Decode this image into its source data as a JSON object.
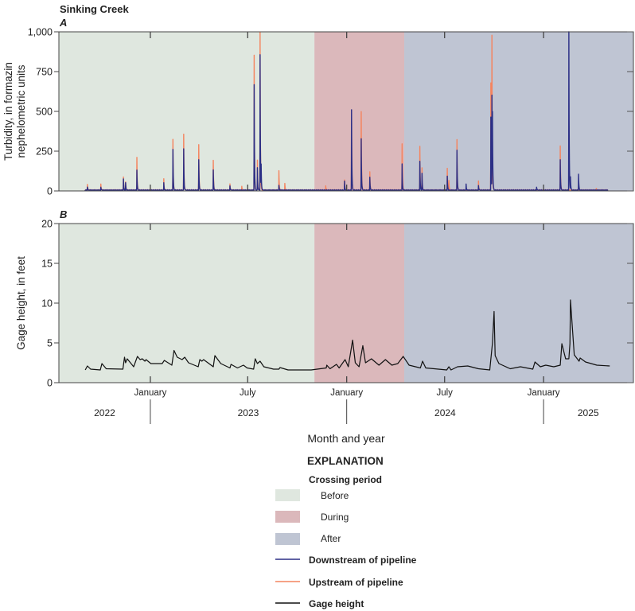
{
  "figure_title": "Sinking Creek",
  "x_axis_title": "Month and year",
  "x_axis": {
    "xlim": [
      "2022-07-15",
      "2025-06-17"
    ],
    "month_ticks": [
      {
        "date": "2023-01-01",
        "label": "January"
      },
      {
        "date": "2023-07-01",
        "label": "July"
      },
      {
        "date": "2024-01-01",
        "label": "January"
      },
      {
        "date": "2024-07-01",
        "label": "July"
      },
      {
        "date": "2025-01-01",
        "label": "January"
      }
    ],
    "years": [
      {
        "label": "2022",
        "center": "2022-10-08"
      },
      {
        "label": "2023",
        "center": "2023-07-02"
      },
      {
        "label": "2024",
        "center": "2024-07-02"
      },
      {
        "label": "2025",
        "center": "2025-03-25"
      }
    ],
    "year_boundaries": [
      "2023-01-01",
      "2024-01-01",
      "2025-01-01"
    ]
  },
  "periods": [
    {
      "name": "Before",
      "start": "2022-07-15",
      "end": "2023-11-02",
      "color": "#dfe7df"
    },
    {
      "name": "During",
      "start": "2023-11-02",
      "end": "2024-04-17",
      "color": "#dbb8bb"
    },
    {
      "name": "After",
      "start": "2024-04-17",
      "end": "2025-06-17",
      "color": "#bfc5d3"
    }
  ],
  "chart_data": [
    {
      "panel": "A",
      "type": "line",
      "ylabel": [
        "Turbidity, in formazin",
        "nephelometric units"
      ],
      "ylim": [
        0,
        1000
      ],
      "yticks": [
        0,
        250,
        500,
        750,
        1000
      ],
      "ytick_labels": [
        "0",
        "250",
        "500",
        "750",
        "1,000"
      ],
      "grid": false,
      "series": [
        {
          "name": "Upstream of pipeline",
          "color": "#f4845f",
          "start": "2022-09-01",
          "end": "2025-05-01",
          "baseline": 6,
          "peaks": [
            [
              "2022-09-06",
              42
            ],
            [
              "2022-10-01",
              45
            ],
            [
              "2022-11-12",
              87
            ],
            [
              "2022-11-16",
              55
            ],
            [
              "2022-12-07",
              213
            ],
            [
              "2023-01-26",
              75
            ],
            [
              "2023-02-12",
              325
            ],
            [
              "2023-03-04",
              355
            ],
            [
              "2023-04-01",
              292
            ],
            [
              "2023-04-28",
              190
            ],
            [
              "2023-05-29",
              45
            ],
            [
              "2023-06-20",
              30
            ],
            [
              "2023-07-13",
              855
            ],
            [
              "2023-07-19",
              192
            ],
            [
              "2023-07-24",
              1000
            ],
            [
              "2023-08-28",
              125
            ],
            [
              "2023-09-08",
              45
            ],
            [
              "2023-11-23",
              34
            ],
            [
              "2023-12-28",
              67
            ],
            [
              "2024-01-10",
              400
            ],
            [
              "2024-01-28",
              500
            ],
            [
              "2024-02-13",
              121
            ],
            [
              "2024-04-13",
              294
            ],
            [
              "2024-05-16",
              279
            ],
            [
              "2024-05-20",
              143
            ],
            [
              "2024-07-06",
              143
            ],
            [
              "2024-07-09",
              67
            ],
            [
              "2024-07-24",
              325
            ],
            [
              "2024-09-02",
              64
            ],
            [
              "2024-09-25",
              681
            ],
            [
              "2024-09-27",
              953
            ],
            [
              "2025-02-01",
              285
            ],
            [
              "2025-04-09",
              17
            ]
          ]
        },
        {
          "name": "Downstream of pipeline",
          "color": "#2b2f86",
          "start": "2022-09-01",
          "end": "2025-05-01",
          "baseline": 5,
          "peaks": [
            [
              "2022-09-06",
              25
            ],
            [
              "2022-10-01",
              25
            ],
            [
              "2022-11-12",
              75
            ],
            [
              "2022-11-16",
              50
            ],
            [
              "2022-12-07",
              133
            ],
            [
              "2023-01-26",
              50
            ],
            [
              "2023-02-12",
              262
            ],
            [
              "2023-03-04",
              263
            ],
            [
              "2023-04-01",
              197
            ],
            [
              "2023-04-28",
              130
            ],
            [
              "2023-05-29",
              33
            ],
            [
              "2023-07-13",
              670
            ],
            [
              "2023-07-19",
              145
            ],
            [
              "2023-07-24",
              858
            ],
            [
              "2023-07-26",
              137
            ],
            [
              "2023-08-28",
              33
            ],
            [
              "2023-12-28",
              60
            ],
            [
              "2024-01-10",
              512
            ],
            [
              "2024-01-28",
              329
            ],
            [
              "2024-02-13",
              87
            ],
            [
              "2024-04-13",
              168
            ],
            [
              "2024-05-16",
              185
            ],
            [
              "2024-05-20",
              109
            ],
            [
              "2024-07-06",
              94
            ],
            [
              "2024-07-24",
              258
            ],
            [
              "2024-08-10",
              42
            ],
            [
              "2024-09-02",
              35
            ],
            [
              "2024-09-25",
              466
            ],
            [
              "2024-09-27",
              584
            ],
            [
              "2024-09-28",
              388
            ],
            [
              "2024-12-19",
              25
            ],
            [
              "2025-02-01",
              198
            ],
            [
              "2025-02-17",
              1000
            ],
            [
              "2025-02-20",
              84
            ],
            [
              "2025-03-07",
              106
            ]
          ]
        }
      ]
    },
    {
      "panel": "B",
      "type": "line",
      "ylabel": "Gage height, in feet",
      "ylim": [
        0,
        20
      ],
      "yticks": [
        0,
        5,
        10,
        15,
        20
      ],
      "ytick_labels": [
        "0",
        "5",
        "10",
        "15",
        "20"
      ],
      "grid": false,
      "series": [
        {
          "name": "Gage height",
          "color": "#111111",
          "points": [
            [
              "2022-09-02",
              1.6
            ],
            [
              "2022-09-06",
              2.1
            ],
            [
              "2022-09-12",
              1.7
            ],
            [
              "2022-09-30",
              1.6
            ],
            [
              "2022-10-03",
              2.4
            ],
            [
              "2022-10-11",
              1.75
            ],
            [
              "2022-11-11",
              1.7
            ],
            [
              "2022-11-14",
              3.2
            ],
            [
              "2022-11-16",
              2.5
            ],
            [
              "2022-11-19",
              3.0
            ],
            [
              "2022-12-01",
              2.0
            ],
            [
              "2022-12-08",
              3.3
            ],
            [
              "2022-12-13",
              2.9
            ],
            [
              "2022-12-17",
              3.0
            ],
            [
              "2022-12-22",
              2.7
            ],
            [
              "2022-12-24",
              2.9
            ],
            [
              "2023-01-02",
              2.4
            ],
            [
              "2023-01-12",
              2.4
            ],
            [
              "2023-01-23",
              2.4
            ],
            [
              "2023-01-27",
              2.8
            ],
            [
              "2023-02-10",
              2.2
            ],
            [
              "2023-02-14",
              4.05
            ],
            [
              "2023-02-20",
              3.2
            ],
            [
              "2023-03-01",
              2.9
            ],
            [
              "2023-03-06",
              3.2
            ],
            [
              "2023-03-13",
              2.5
            ],
            [
              "2023-03-31",
              2.0
            ],
            [
              "2023-04-03",
              2.9
            ],
            [
              "2023-04-07",
              2.7
            ],
            [
              "2023-04-10",
              2.9
            ],
            [
              "2023-04-28",
              2.0
            ],
            [
              "2023-05-01",
              3.4
            ],
            [
              "2023-05-12",
              2.4
            ],
            [
              "2023-05-29",
              1.85
            ],
            [
              "2023-05-31",
              2.3
            ],
            [
              "2023-06-12",
              1.85
            ],
            [
              "2023-06-23",
              2.2
            ],
            [
              "2023-06-30",
              1.85
            ],
            [
              "2023-07-12",
              1.7
            ],
            [
              "2023-07-15",
              3.0
            ],
            [
              "2023-07-19",
              2.4
            ],
            [
              "2023-07-24",
              2.7
            ],
            [
              "2023-07-31",
              2.0
            ],
            [
              "2023-08-18",
              1.7
            ],
            [
              "2023-08-28",
              1.7
            ],
            [
              "2023-08-30",
              1.9
            ],
            [
              "2023-09-14",
              1.6
            ],
            [
              "2023-10-27",
              1.6
            ],
            [
              "2023-11-24",
              1.85
            ],
            [
              "2023-11-25",
              2.2
            ],
            [
              "2023-12-01",
              1.75
            ],
            [
              "2023-12-13",
              2.3
            ],
            [
              "2023-12-18",
              1.85
            ],
            [
              "2023-12-29",
              2.9
            ],
            [
              "2024-01-04",
              2.0
            ],
            [
              "2024-01-12",
              5.35
            ],
            [
              "2024-01-17",
              2.5
            ],
            [
              "2024-01-24",
              2.0
            ],
            [
              "2024-01-31",
              4.65
            ],
            [
              "2024-02-05",
              2.5
            ],
            [
              "2024-02-16",
              3.0
            ],
            [
              "2024-03-01",
              2.2
            ],
            [
              "2024-03-13",
              2.9
            ],
            [
              "2024-03-25",
              2.2
            ],
            [
              "2024-04-05",
              2.4
            ],
            [
              "2024-04-15",
              3.3
            ],
            [
              "2024-04-26",
              2.2
            ],
            [
              "2024-05-17",
              1.85
            ],
            [
              "2024-05-21",
              2.7
            ],
            [
              "2024-05-27",
              1.85
            ],
            [
              "2024-07-05",
              1.6
            ],
            [
              "2024-07-09",
              2.0
            ],
            [
              "2024-07-13",
              1.6
            ],
            [
              "2024-07-25",
              2.0
            ],
            [
              "2024-08-13",
              2.1
            ],
            [
              "2024-09-02",
              1.75
            ],
            [
              "2024-09-23",
              1.6
            ],
            [
              "2024-09-28",
              5.0
            ],
            [
              "2024-10-01",
              8.95
            ],
            [
              "2024-10-03",
              3.4
            ],
            [
              "2024-10-10",
              2.4
            ],
            [
              "2024-10-31",
              1.75
            ],
            [
              "2024-11-19",
              2.0
            ],
            [
              "2024-12-12",
              1.7
            ],
            [
              "2024-12-16",
              2.6
            ],
            [
              "2024-12-26",
              2.0
            ],
            [
              "2025-01-05",
              2.2
            ],
            [
              "2025-01-20",
              2.0
            ],
            [
              "2025-02-01",
              2.2
            ],
            [
              "2025-02-04",
              4.9
            ],
            [
              "2025-02-11",
              3.0
            ],
            [
              "2025-02-17",
              3.0
            ],
            [
              "2025-02-19",
              4.9
            ],
            [
              "2025-02-20",
              10.4
            ],
            [
              "2025-02-27",
              3.5
            ],
            [
              "2025-03-08",
              2.7
            ],
            [
              "2025-03-10",
              3.1
            ],
            [
              "2025-03-20",
              2.6
            ],
            [
              "2025-04-10",
              2.2
            ],
            [
              "2025-05-04",
              2.1
            ]
          ]
        }
      ]
    }
  ],
  "legend": {
    "title": "EXPLANATION",
    "subtitle": "Crossing period",
    "period_items": [
      "Before",
      "During",
      "After"
    ],
    "line_items": [
      {
        "label": "Downstream of pipeline",
        "color": "#2b2f86"
      },
      {
        "label": "Upstream of pipeline",
        "color": "#f4845f"
      },
      {
        "label": "Gage height",
        "color": "#111111"
      }
    ]
  }
}
